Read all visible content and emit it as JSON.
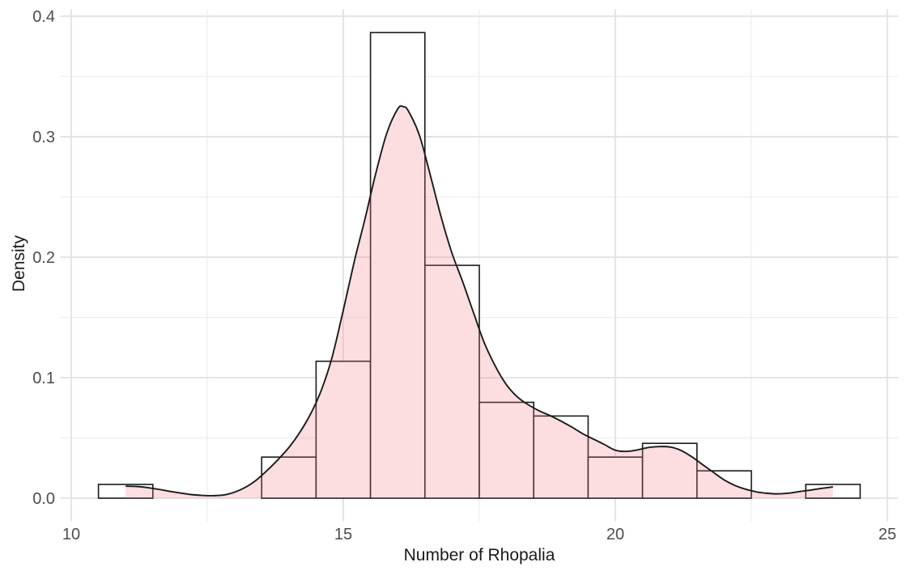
{
  "chart_data": {
    "type": "histogram_density",
    "title": "",
    "xlabel": "Number of Rhopalia",
    "ylabel": "Density",
    "grid": true,
    "legend": false,
    "xlim": [
      9.8,
      25.2
    ],
    "ylim": [
      -0.0193,
      0.4057
    ],
    "x_tick_values": [
      10,
      15,
      20,
      25
    ],
    "x_tick_labels": [
      "10",
      "15",
      "20",
      "25"
    ],
    "x_minor_ticks": [
      12.5,
      17.5,
      22.5
    ],
    "y_tick_values": [
      0.0,
      0.1,
      0.2,
      0.3,
      0.4
    ],
    "y_tick_labels": [
      "0.0",
      "0.1",
      "0.2",
      "0.3",
      "0.4"
    ],
    "y_minor_ticks": [
      0.05,
      0.15,
      0.25,
      0.35
    ],
    "binwidth": 1,
    "sample_size": 88,
    "histogram": {
      "bin_centers": [
        11,
        14,
        15,
        16,
        17,
        18,
        19,
        20,
        21,
        22,
        24
      ],
      "counts": [
        1,
        3,
        10,
        34,
        17,
        7,
        6,
        3,
        4,
        2,
        1
      ],
      "densities": [
        0.0114,
        0.0341,
        0.1136,
        0.3864,
        0.1932,
        0.0795,
        0.0682,
        0.0341,
        0.0455,
        0.0227,
        0.0114
      ]
    },
    "density_curve": {
      "x": [
        11.0,
        11.2,
        11.4,
        11.6,
        11.8,
        12.0,
        12.2,
        12.4,
        12.6,
        12.8,
        13.0,
        13.2,
        13.4,
        13.6,
        13.8,
        14.0,
        14.2,
        14.4,
        14.6,
        14.8,
        15.0,
        15.2,
        15.4,
        15.6,
        15.8,
        16.0,
        16.1,
        16.2,
        16.4,
        16.6,
        16.8,
        17.0,
        17.2,
        17.4,
        17.6,
        17.8,
        18.0,
        18.2,
        18.4,
        18.6,
        18.8,
        19.0,
        19.2,
        19.4,
        19.6,
        19.8,
        20.0,
        20.2,
        20.4,
        20.6,
        20.8,
        21.0,
        21.2,
        21.4,
        21.6,
        21.8,
        22.0,
        22.2,
        22.4,
        22.6,
        22.8,
        23.0,
        23.2,
        23.4,
        23.6,
        23.8,
        24.0
      ],
      "y": [
        0.01,
        0.0097,
        0.0088,
        0.0074,
        0.0058,
        0.0043,
        0.003,
        0.0023,
        0.0021,
        0.0026,
        0.005,
        0.009,
        0.015,
        0.023,
        0.032,
        0.042,
        0.0545,
        0.07,
        0.09,
        0.118,
        0.156,
        0.196,
        0.232,
        0.27,
        0.303,
        0.323,
        0.325,
        0.321,
        0.301,
        0.268,
        0.233,
        0.203,
        0.179,
        0.153,
        0.128,
        0.109,
        0.094,
        0.084,
        0.0775,
        0.0725,
        0.0685,
        0.064,
        0.059,
        0.0535,
        0.049,
        0.0445,
        0.0398,
        0.0388,
        0.04,
        0.042,
        0.0428,
        0.0425,
        0.0398,
        0.0345,
        0.028,
        0.0215,
        0.0152,
        0.0105,
        0.0073,
        0.0052,
        0.004,
        0.0036,
        0.0042,
        0.0056,
        0.0068,
        0.0082,
        0.0093
      ]
    },
    "colors": {
      "background": "#FFFFFF",
      "bar_fill": "#FFFFFF",
      "bar_stroke": "#1A1A1A",
      "density_fill": "rgba(249,124,132,0.25)",
      "density_stroke": "#1A1A1A",
      "grid_major": "#E4E4E4",
      "grid_minor": "#EDEDED",
      "tick_label": "#4D4D4D",
      "axis_title": "#1A1A1A"
    }
  }
}
